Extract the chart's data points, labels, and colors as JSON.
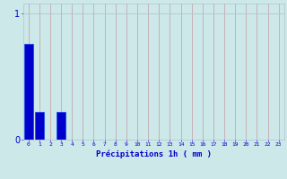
{
  "xlabel": "Précipitations 1h ( mm )",
  "bar_values": [
    0.76,
    0.22,
    0.0,
    0.22,
    0.0,
    0.0,
    0.0,
    0.0,
    0.0,
    0.0,
    0.0,
    0.0,
    0.0,
    0.0,
    0.0,
    0.0,
    0.0,
    0.0,
    0.0,
    0.0,
    0.0,
    0.0,
    0.0,
    0.0
  ],
  "bar_color": "#0000cc",
  "bar_edge_color": "#1144ee",
  "background_color": "#cce8e8",
  "grid_color_v": "#c8a8b0",
  "grid_color_h": "#b0c4d0",
  "text_color": "#0000cc",
  "ylim": [
    0,
    1.08
  ],
  "yticks": [
    0,
    1
  ],
  "xlim": [
    -0.5,
    23.5
  ],
  "num_bars": 24,
  "figsize": [
    3.2,
    2.0
  ],
  "dpi": 100
}
